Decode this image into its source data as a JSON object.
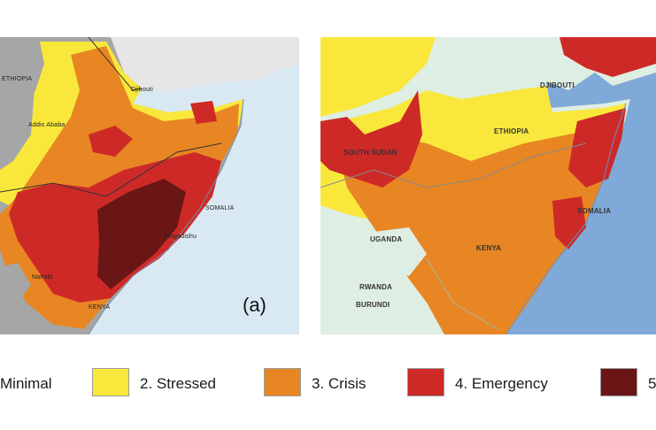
{
  "panel_a": {
    "label": "(a)",
    "places": [
      "ETHIOPIA",
      "Djibouti",
      "Addis Ababa",
      "SOMALIA",
      "Mogadishu",
      "Nairobi",
      "KENYA"
    ]
  },
  "panel_b": {
    "places": [
      "DJIBOUTI",
      "ETHIOPIA",
      "SOUTH SUDAN",
      "SOMALIA",
      "UGANDA",
      "KENYA",
      "RWANDA",
      "BURUNDI"
    ]
  },
  "legend": [
    {
      "label": "Minimal",
      "color": "#e8f3e8"
    },
    {
      "label": "2. Stressed",
      "color": "#f9e83b"
    },
    {
      "label": "3. Crisis",
      "color": "#e88624"
    },
    {
      "label": "4. Emergency",
      "color": "#cd2a27"
    },
    {
      "label": "5",
      "color": "#6b1616"
    }
  ],
  "colors": {
    "sea_a": "#d9e9f4",
    "sea_b": "#7ea9d8",
    "no_data_land": "#a6a6a6",
    "outside_land": "#e6e6e6",
    "minimal_land": "#dfeee2"
  }
}
